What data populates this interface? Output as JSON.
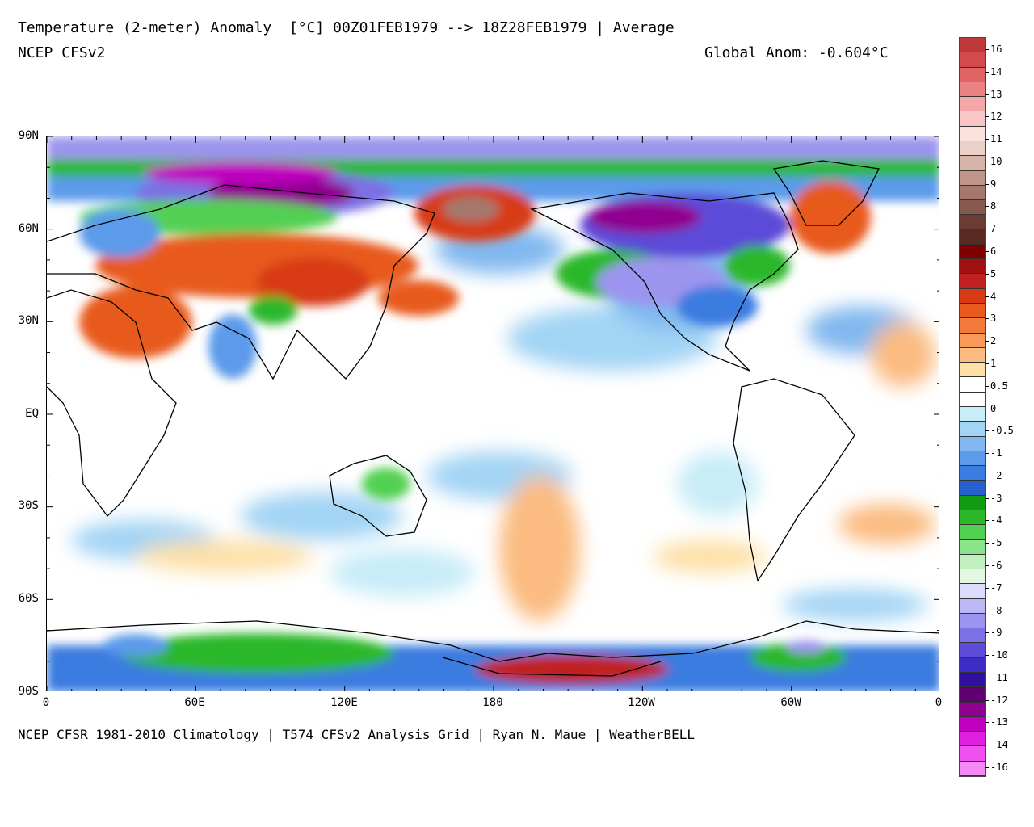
{
  "header": {
    "title_line1": "Temperature (2-meter) Anomaly  [°C] 00Z01FEB1979 --> 18Z28FEB1979 | Average",
    "title_line2": "NCEP CFSv2",
    "global_anomaly": "Global Anom: -0.604°C"
  },
  "footer": {
    "credit": "NCEP CFSR 1981-2010 Climatology | T574 CFSv2 Analysis Grid | Ryan N. Maue | WeatherBELL"
  },
  "axes": {
    "lat_labels": [
      "90N",
      "60N",
      "30N",
      "EQ",
      "30S",
      "60S",
      "90S"
    ],
    "lon_labels": [
      "0",
      "60E",
      "120E",
      "180",
      "120W",
      "60W",
      "0"
    ]
  },
  "map": {
    "projection": "equirectangular",
    "lon_range": [
      0,
      360
    ],
    "lat_range": [
      -90,
      90
    ],
    "anomaly_regions": [
      {
        "name": "siberia-arctic-cold",
        "lon": 100,
        "lat": 76,
        "anomaly": -12
      },
      {
        "name": "alaska-warm",
        "lon": 175,
        "lat": 63,
        "anomaly": 9
      },
      {
        "name": "canada-cold",
        "lon": 255,
        "lat": 60,
        "anomaly": -11
      },
      {
        "name": "greenland-warm",
        "lon": 320,
        "lat": 65,
        "anomaly": 3
      },
      {
        "name": "central-asia-warm",
        "lon": 80,
        "lat": 45,
        "anomaly": 3
      },
      {
        "name": "tibet-cold",
        "lon": 90,
        "lat": 34,
        "anomaly": -5
      },
      {
        "name": "middle-east-warm",
        "lon": 40,
        "lat": 30,
        "anomaly": 2
      },
      {
        "name": "north-pacific-warm",
        "lon": 160,
        "lat": 35,
        "anomaly": 2
      },
      {
        "name": "usa-cold",
        "lon": 265,
        "lat": 40,
        "anomaly": -9
      },
      {
        "name": "ross-sea-warm",
        "lon": 195,
        "lat": -78,
        "anomaly": 4
      },
      {
        "name": "east-antarctica-cold",
        "lon": 90,
        "lat": -76,
        "anomaly": -4
      },
      {
        "name": "south-pacific-warm",
        "lon": 180,
        "lat": -45,
        "anomaly": 1.5
      },
      {
        "name": "weddell-cold",
        "lon": 310,
        "lat": -78,
        "anomaly": -6
      }
    ]
  },
  "colorbar": {
    "labels": [
      "16",
      "14",
      "13",
      "12",
      "11",
      "10",
      "9",
      "8",
      "7",
      "6",
      "5",
      "4",
      "3",
      "2",
      "1",
      "0.5",
      "0",
      "-0.5",
      "-1",
      "-2",
      "-3",
      "-4",
      "-5",
      "-6",
      "-7",
      "-8",
      "-9",
      "-10",
      "-11",
      "-12",
      "-13",
      "-14",
      "-16"
    ],
    "colors": [
      "#c0393a",
      "#d24a4c",
      "#e06365",
      "#eb8285",
      "#f4a6a8",
      "#f8c6c6",
      "#fbe2dc",
      "#ead0c6",
      "#d8b4a8",
      "#c0968a",
      "#a4786c",
      "#87584e",
      "#6c3c34",
      "#5a2a22",
      "#800000",
      "#a01010",
      "#c02020",
      "#d83a14",
      "#e85a1e",
      "#f27a3a",
      "#f89a5a",
      "#fbbb80",
      "#fde0a6",
      "#ffffff",
      "#ffffff",
      "#c8ecf8",
      "#a2d4f4",
      "#80b8ef",
      "#5c9aea",
      "#3a7ce0",
      "#2660cc",
      "#129a12",
      "#2ab82a",
      "#52d052",
      "#8ae48a",
      "#c0f0c0",
      "#e2f8e2",
      "#dcdcfc",
      "#bcb8f6",
      "#9c94ee",
      "#7c70e4",
      "#5c4cd8",
      "#3e2cc4",
      "#3010a0",
      "#600070",
      "#900090",
      "#c000c0",
      "#e020e0",
      "#f050f0",
      "#f488f4"
    ]
  }
}
